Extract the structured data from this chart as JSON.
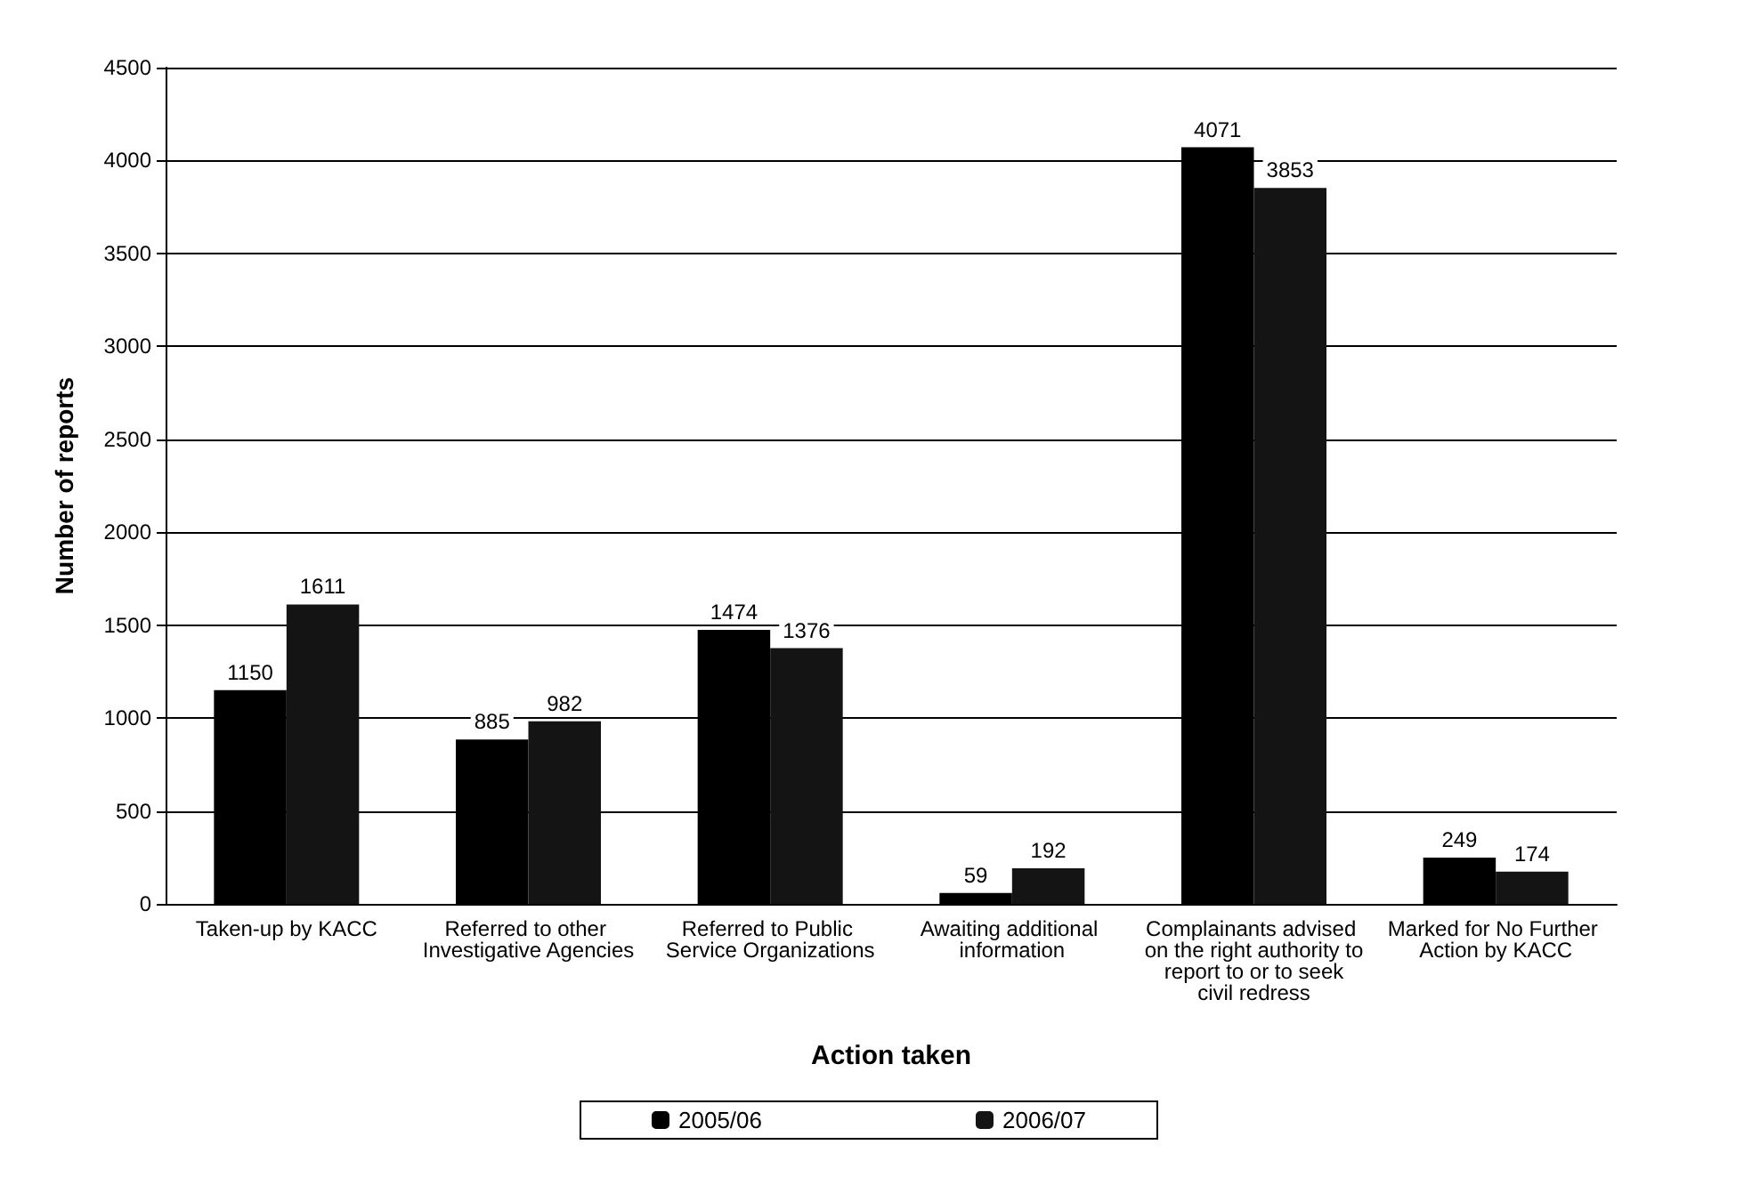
{
  "chart_data": {
    "type": "bar",
    "xlabel": "Action taken",
    "ylabel": "Number of reports",
    "categories": [
      "Taken-up by KACC",
      "Referred to other Investigative Agencies",
      "Referred to Public Service Organizations",
      "Awaiting additional information",
      "Complainants advised on the right authority to report to or to seek civil redress",
      "Marked for No Further Action by KACC"
    ],
    "series": [
      {
        "name": "2005/06",
        "color": "#000000",
        "values": [
          1150,
          885,
          1474,
          59,
          4071,
          249
        ]
      },
      {
        "name": "2006/07",
        "color": "#141414",
        "values": [
          1611,
          982,
          1376,
          192,
          3853,
          174
        ]
      }
    ],
    "ylim": [
      0,
      4500
    ],
    "yticks": [
      0,
      500,
      1000,
      1500,
      2000,
      2500,
      3000,
      3500,
      4000,
      4500
    ],
    "grid": "y",
    "legend": "bottom",
    "data_labels": true
  }
}
